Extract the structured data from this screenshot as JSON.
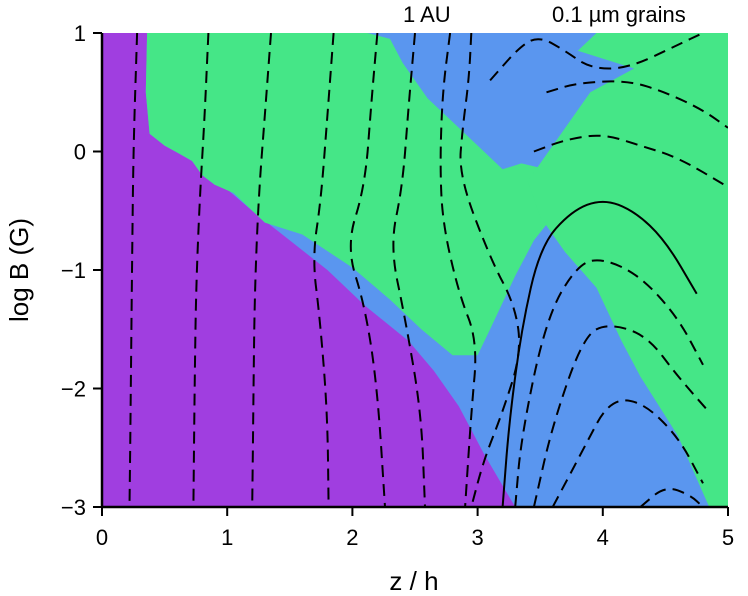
{
  "chart_data": {
    "type": "contour",
    "title": "",
    "annotations": [
      "1 AU",
      "0.1 µm grains"
    ],
    "xlabel": "z / h",
    "ylabel": "log B (G)",
    "xlim": [
      0,
      5
    ],
    "ylim": [
      -3,
      1
    ],
    "xticks": [
      "0",
      "1",
      "2",
      "3",
      "4",
      "5"
    ],
    "yticks": [
      "−3",
      "−2",
      "−1",
      "0",
      "1"
    ],
    "xtick_values": [
      0,
      1,
      2,
      3,
      4,
      5
    ],
    "ytick_values": [
      -3,
      -2,
      -1,
      0,
      1
    ],
    "colors": {
      "region_purple": "#a03ee0",
      "region_blue": "#5a96ef",
      "region_green": "#45e687",
      "contour": "#000000",
      "axis": "#000000"
    },
    "regions": [
      {
        "color": "region_purple",
        "boundary": [
          [
            0,
            1
          ],
          [
            0.36,
            1
          ],
          [
            0.35,
            0.5
          ],
          [
            0.38,
            0.15
          ],
          [
            0.5,
            0.05
          ],
          [
            0.62,
            -0.02
          ],
          [
            0.72,
            -0.08
          ],
          [
            0.8,
            -0.2
          ],
          [
            0.9,
            -0.28
          ],
          [
            1.0,
            -0.32
          ],
          [
            1.2,
            -0.5
          ],
          [
            1.5,
            -0.75
          ],
          [
            1.8,
            -1.0
          ],
          [
            2.1,
            -1.3
          ],
          [
            2.45,
            -1.6
          ],
          [
            2.65,
            -1.85
          ],
          [
            2.85,
            -2.15
          ],
          [
            3.05,
            -2.55
          ],
          [
            3.3,
            -3.0
          ],
          [
            0,
            -3
          ]
        ]
      },
      {
        "color": "region_green",
        "boundary": [
          [
            0.36,
            1
          ],
          [
            2.12,
            1
          ],
          [
            2.3,
            0.95
          ],
          [
            2.4,
            0.75
          ],
          [
            2.6,
            0.45
          ],
          [
            2.85,
            0.2
          ],
          [
            3.05,
            0.0
          ],
          [
            3.2,
            -0.15
          ],
          [
            3.35,
            -0.1
          ],
          [
            3.55,
            -0.15
          ],
          [
            3.8,
            -0.3
          ],
          [
            4.1,
            -0.55
          ],
          [
            4.3,
            -0.95
          ],
          [
            4.4,
            -1.1
          ],
          [
            3.8,
            -0.45
          ],
          [
            3.6,
            -0.55
          ],
          [
            3.45,
            -0.75
          ],
          [
            3.3,
            -1.05
          ],
          [
            3.1,
            -1.5
          ],
          [
            3.0,
            -1.72
          ],
          [
            2.8,
            -1.72
          ],
          [
            2.55,
            -1.5
          ],
          [
            2.3,
            -1.25
          ],
          [
            2.0,
            -0.98
          ],
          [
            1.6,
            -0.7
          ],
          [
            1.3,
            -0.6
          ],
          [
            1.05,
            -0.35
          ],
          [
            0.9,
            -0.28
          ],
          [
            0.8,
            -0.2
          ],
          [
            0.72,
            -0.08
          ],
          [
            0.62,
            -0.02
          ],
          [
            0.5,
            0.05
          ],
          [
            0.38,
            0.15
          ],
          [
            0.35,
            0.5
          ]
        ]
      },
      {
        "color": "region_green",
        "boundary": [
          [
            3.95,
            1
          ],
          [
            5,
            1
          ],
          [
            5,
            -3
          ],
          [
            4.85,
            -3
          ],
          [
            4.6,
            -2.4
          ],
          [
            4.3,
            -1.9
          ],
          [
            4.15,
            -1.6
          ],
          [
            3.95,
            -1.15
          ],
          [
            3.7,
            -0.85
          ],
          [
            3.5,
            -0.55
          ],
          [
            3.4,
            -0.25
          ],
          [
            3.6,
            0.05
          ],
          [
            3.9,
            0.5
          ],
          [
            4.25,
            0.7
          ],
          [
            3.8,
            0.85
          ]
        ]
      }
    ],
    "contours": [
      {
        "style": "dashed",
        "points": [
          [
            0.28,
            1
          ],
          [
            0.25,
            0.0
          ],
          [
            0.24,
            -1.0
          ],
          [
            0.23,
            -2.0
          ],
          [
            0.22,
            -3
          ]
        ]
      },
      {
        "style": "dashed",
        "points": [
          [
            0.85,
            1
          ],
          [
            0.82,
            0.3
          ],
          [
            0.78,
            -0.4
          ],
          [
            0.75,
            -1.2
          ],
          [
            0.74,
            -2.0
          ],
          [
            0.73,
            -3
          ]
        ]
      },
      {
        "style": "dashed",
        "points": [
          [
            1.35,
            1
          ],
          [
            1.3,
            0.3
          ],
          [
            1.25,
            -0.4
          ],
          [
            1.22,
            -1.2
          ],
          [
            1.21,
            -2.0
          ],
          [
            1.2,
            -3
          ]
        ]
      },
      {
        "style": "dashed",
        "points": [
          [
            1.85,
            1
          ],
          [
            1.8,
            0.3
          ],
          [
            1.75,
            -0.4
          ],
          [
            1.68,
            -0.9
          ],
          [
            1.74,
            -1.4
          ],
          [
            1.8,
            -2.2
          ],
          [
            1.81,
            -3
          ]
        ]
      },
      {
        "style": "dashed",
        "points": [
          [
            2.2,
            1
          ],
          [
            2.15,
            0.4
          ],
          [
            2.1,
            -0.3
          ],
          [
            1.95,
            -0.8
          ],
          [
            2.1,
            -1.3
          ],
          [
            2.2,
            -2.0
          ],
          [
            2.26,
            -3
          ]
        ]
      },
      {
        "style": "dashed",
        "points": [
          [
            2.5,
            1
          ],
          [
            2.45,
            0.4
          ],
          [
            2.4,
            -0.3
          ],
          [
            2.3,
            -0.8
          ],
          [
            2.42,
            -1.4
          ],
          [
            2.55,
            -2.2
          ],
          [
            2.58,
            -3
          ]
        ]
      },
      {
        "style": "dashed",
        "points": [
          [
            2.78,
            1
          ],
          [
            2.72,
            0.5
          ],
          [
            2.7,
            -0.1
          ],
          [
            2.72,
            -0.6
          ],
          [
            2.85,
            -1.2
          ],
          [
            3.0,
            -1.6
          ],
          [
            2.95,
            -2.2
          ],
          [
            2.9,
            -3
          ]
        ]
      },
      {
        "style": "dashed",
        "points": [
          [
            2.95,
            1
          ],
          [
            2.93,
            0.6
          ],
          [
            2.88,
            0.2
          ],
          [
            2.85,
            -0.2
          ],
          [
            3.1,
            -0.9
          ],
          [
            3.3,
            -1.3
          ],
          [
            3.35,
            -1.7
          ],
          [
            3.2,
            -2.2
          ],
          [
            3.05,
            -2.6
          ],
          [
            2.95,
            -3
          ]
        ]
      },
      {
        "style": "solid",
        "points": [
          [
            3.2,
            -3
          ],
          [
            3.25,
            -2.3
          ],
          [
            3.35,
            -1.5
          ],
          [
            3.5,
            -0.8
          ],
          [
            3.75,
            -0.5
          ],
          [
            4.0,
            -0.4
          ],
          [
            4.25,
            -0.5
          ],
          [
            4.5,
            -0.75
          ],
          [
            4.75,
            -1.2
          ]
        ]
      },
      {
        "style": "dashed",
        "points": [
          [
            3.3,
            -3
          ],
          [
            3.35,
            -2.4
          ],
          [
            3.55,
            -1.4
          ],
          [
            3.8,
            -0.95
          ],
          [
            4.0,
            -0.9
          ],
          [
            4.3,
            -1.05
          ],
          [
            4.6,
            -1.4
          ],
          [
            4.8,
            -1.8
          ]
        ]
      },
      {
        "style": "dashed",
        "points": [
          [
            3.45,
            -3
          ],
          [
            3.6,
            -2.3
          ],
          [
            3.85,
            -1.55
          ],
          [
            4.05,
            -1.45
          ],
          [
            4.35,
            -1.55
          ],
          [
            4.6,
            -1.9
          ],
          [
            4.85,
            -2.2
          ]
        ]
      },
      {
        "style": "dashed",
        "points": [
          [
            3.6,
            -3
          ],
          [
            3.85,
            -2.5
          ],
          [
            4.05,
            -2.1
          ],
          [
            4.3,
            -2.1
          ],
          [
            4.6,
            -2.4
          ],
          [
            4.8,
            -2.8
          ]
        ]
      },
      {
        "style": "dashed",
        "points": [
          [
            4.3,
            -3
          ],
          [
            4.5,
            -2.82
          ],
          [
            4.7,
            -2.9
          ],
          [
            4.8,
            -3
          ]
        ]
      },
      {
        "style": "dashed",
        "points": [
          [
            3.45,
            0.0
          ],
          [
            3.7,
            0.1
          ],
          [
            4.0,
            0.15
          ],
          [
            4.3,
            0.05
          ],
          [
            4.6,
            -0.05
          ],
          [
            5,
            -0.3
          ]
        ]
      },
      {
        "style": "dashed",
        "points": [
          [
            3.55,
            0.5
          ],
          [
            3.8,
            0.58
          ],
          [
            4.2,
            0.6
          ],
          [
            4.5,
            0.5
          ],
          [
            4.8,
            0.35
          ],
          [
            5,
            0.2
          ]
        ]
      },
      {
        "style": "dashed",
        "points": [
          [
            3.1,
            0.6
          ],
          [
            3.35,
            0.9
          ],
          [
            3.5,
            0.97
          ],
          [
            3.7,
            0.85
          ],
          [
            3.9,
            0.7
          ],
          [
            4.2,
            0.7
          ],
          [
            4.6,
            0.9
          ],
          [
            4.8,
            1.0
          ]
        ]
      }
    ]
  }
}
